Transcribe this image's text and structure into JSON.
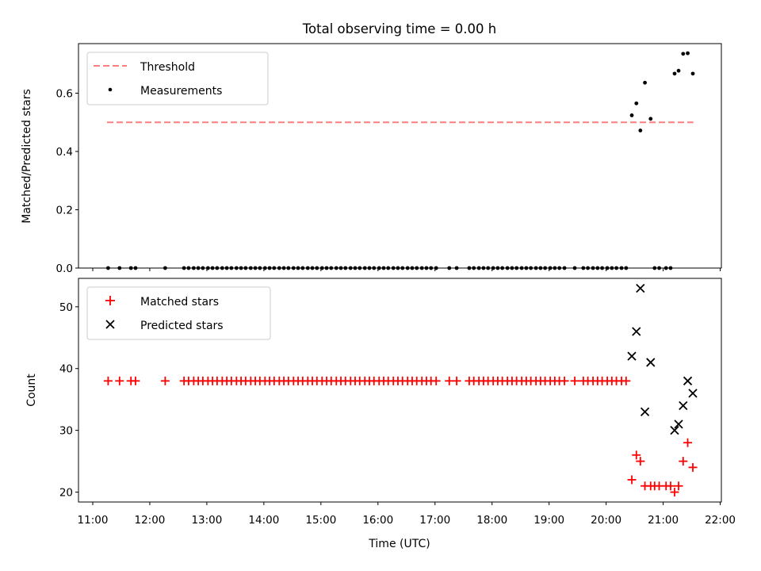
{
  "chart_data": [
    {
      "type": "scatter",
      "title": "Total observing time = 0.00 h",
      "xlabel": "",
      "ylabel": "Matched/Predicted stars",
      "xlim": [
        10.75,
        22.02
      ],
      "ylim": [
        0.0,
        0.77
      ],
      "yticks": [
        0.0,
        0.2,
        0.4,
        0.6
      ],
      "ytick_labels": [
        "0.0",
        "0.2",
        "0.4",
        "0.6"
      ],
      "legend_position": "upper-left",
      "threshold": {
        "name": "Threshold",
        "value": 0.5,
        "x_range": [
          11.25,
          21.53
        ],
        "style": "dashed",
        "color": "#ff7f7f"
      },
      "series": [
        {
          "name": "Measurements",
          "marker": "dot",
          "color": "#000000",
          "points": [
            [
              11.27,
              0
            ],
            [
              11.47,
              0
            ],
            [
              11.67,
              0
            ],
            [
              11.75,
              0
            ],
            [
              12.27,
              0
            ],
            [
              12.6,
              0
            ],
            [
              12.68,
              0
            ],
            [
              12.77,
              0
            ],
            [
              12.85,
              0
            ],
            [
              12.93,
              0
            ],
            [
              13.02,
              0
            ],
            [
              13.1,
              0
            ],
            [
              13.18,
              0
            ],
            [
              13.27,
              0
            ],
            [
              13.35,
              0
            ],
            [
              13.43,
              0
            ],
            [
              13.52,
              0
            ],
            [
              13.6,
              0
            ],
            [
              13.68,
              0
            ],
            [
              13.77,
              0
            ],
            [
              13.85,
              0
            ],
            [
              13.93,
              0
            ],
            [
              14.02,
              0
            ],
            [
              14.1,
              0
            ],
            [
              14.18,
              0
            ],
            [
              14.27,
              0
            ],
            [
              14.35,
              0
            ],
            [
              14.43,
              0
            ],
            [
              14.52,
              0
            ],
            [
              14.6,
              0
            ],
            [
              14.68,
              0
            ],
            [
              14.77,
              0
            ],
            [
              14.85,
              0
            ],
            [
              14.93,
              0
            ],
            [
              15.02,
              0
            ],
            [
              15.1,
              0
            ],
            [
              15.18,
              0
            ],
            [
              15.27,
              0
            ],
            [
              15.35,
              0
            ],
            [
              15.43,
              0
            ],
            [
              15.52,
              0
            ],
            [
              15.6,
              0
            ],
            [
              15.68,
              0
            ],
            [
              15.77,
              0
            ],
            [
              15.85,
              0
            ],
            [
              15.93,
              0
            ],
            [
              16.02,
              0
            ],
            [
              16.1,
              0
            ],
            [
              16.18,
              0
            ],
            [
              16.27,
              0
            ],
            [
              16.35,
              0
            ],
            [
              16.43,
              0
            ],
            [
              16.52,
              0
            ],
            [
              16.6,
              0
            ],
            [
              16.68,
              0
            ],
            [
              16.77,
              0
            ],
            [
              16.85,
              0
            ],
            [
              16.93,
              0
            ],
            [
              17.02,
              0
            ],
            [
              17.25,
              0
            ],
            [
              17.38,
              0
            ],
            [
              17.6,
              0
            ],
            [
              17.68,
              0
            ],
            [
              17.77,
              0
            ],
            [
              17.85,
              0
            ],
            [
              17.93,
              0
            ],
            [
              18.02,
              0
            ],
            [
              18.1,
              0
            ],
            [
              18.18,
              0
            ],
            [
              18.27,
              0
            ],
            [
              18.35,
              0
            ],
            [
              18.43,
              0
            ],
            [
              18.52,
              0
            ],
            [
              18.6,
              0
            ],
            [
              18.68,
              0
            ],
            [
              18.77,
              0
            ],
            [
              18.85,
              0
            ],
            [
              18.93,
              0
            ],
            [
              19.02,
              0
            ],
            [
              19.1,
              0
            ],
            [
              19.18,
              0
            ],
            [
              19.27,
              0
            ],
            [
              19.45,
              0
            ],
            [
              19.6,
              0
            ],
            [
              19.68,
              0
            ],
            [
              19.77,
              0
            ],
            [
              19.85,
              0
            ],
            [
              19.93,
              0
            ],
            [
              20.02,
              0
            ],
            [
              20.1,
              0
            ],
            [
              20.18,
              0
            ],
            [
              20.27,
              0
            ],
            [
              20.35,
              0
            ],
            [
              20.45,
              0.524
            ],
            [
              20.53,
              0.565
            ],
            [
              20.6,
              0.472
            ],
            [
              20.68,
              0.636
            ],
            [
              20.78,
              0.512
            ],
            [
              20.85,
              0
            ],
            [
              20.93,
              0
            ],
            [
              21.05,
              0
            ],
            [
              21.13,
              0
            ],
            [
              21.2,
              0.667
            ],
            [
              21.27,
              0.677
            ],
            [
              21.35,
              0.735
            ],
            [
              21.43,
              0.737
            ],
            [
              21.52,
              0.667
            ]
          ]
        }
      ]
    },
    {
      "type": "scatter",
      "title": "",
      "xlabel": "Time (UTC)",
      "ylabel": "Count",
      "xlim": [
        10.75,
        22.02
      ],
      "ylim": [
        18.4,
        54.6
      ],
      "yticks": [
        20,
        30,
        40,
        50
      ],
      "ytick_labels": [
        "20",
        "30",
        "40",
        "50"
      ],
      "xticks": [
        11,
        12,
        13,
        14,
        15,
        16,
        17,
        18,
        19,
        20,
        21,
        22
      ],
      "xtick_labels": [
        "11:00",
        "12:00",
        "13:00",
        "14:00",
        "15:00",
        "16:00",
        "17:00",
        "18:00",
        "19:00",
        "20:00",
        "21:00",
        "22:00"
      ],
      "legend_position": "upper-left",
      "series": [
        {
          "name": "Matched stars",
          "marker": "plus",
          "color": "#ff0000",
          "points": [
            [
              11.27,
              38
            ],
            [
              11.47,
              38
            ],
            [
              11.67,
              38
            ],
            [
              11.75,
              38
            ],
            [
              12.27,
              38
            ],
            [
              12.6,
              38
            ],
            [
              12.68,
              38
            ],
            [
              12.77,
              38
            ],
            [
              12.85,
              38
            ],
            [
              12.93,
              38
            ],
            [
              13.02,
              38
            ],
            [
              13.1,
              38
            ],
            [
              13.18,
              38
            ],
            [
              13.27,
              38
            ],
            [
              13.35,
              38
            ],
            [
              13.43,
              38
            ],
            [
              13.52,
              38
            ],
            [
              13.6,
              38
            ],
            [
              13.68,
              38
            ],
            [
              13.77,
              38
            ],
            [
              13.85,
              38
            ],
            [
              13.93,
              38
            ],
            [
              14.02,
              38
            ],
            [
              14.1,
              38
            ],
            [
              14.18,
              38
            ],
            [
              14.27,
              38
            ],
            [
              14.35,
              38
            ],
            [
              14.43,
              38
            ],
            [
              14.52,
              38
            ],
            [
              14.6,
              38
            ],
            [
              14.68,
              38
            ],
            [
              14.77,
              38
            ],
            [
              14.85,
              38
            ],
            [
              14.93,
              38
            ],
            [
              15.02,
              38
            ],
            [
              15.1,
              38
            ],
            [
              15.18,
              38
            ],
            [
              15.27,
              38
            ],
            [
              15.35,
              38
            ],
            [
              15.43,
              38
            ],
            [
              15.52,
              38
            ],
            [
              15.6,
              38
            ],
            [
              15.68,
              38
            ],
            [
              15.77,
              38
            ],
            [
              15.85,
              38
            ],
            [
              15.93,
              38
            ],
            [
              16.02,
              38
            ],
            [
              16.1,
              38
            ],
            [
              16.18,
              38
            ],
            [
              16.27,
              38
            ],
            [
              16.35,
              38
            ],
            [
              16.43,
              38
            ],
            [
              16.52,
              38
            ],
            [
              16.6,
              38
            ],
            [
              16.68,
              38
            ],
            [
              16.77,
              38
            ],
            [
              16.85,
              38
            ],
            [
              16.93,
              38
            ],
            [
              17.02,
              38
            ],
            [
              17.25,
              38
            ],
            [
              17.38,
              38
            ],
            [
              17.6,
              38
            ],
            [
              17.68,
              38
            ],
            [
              17.77,
              38
            ],
            [
              17.85,
              38
            ],
            [
              17.93,
              38
            ],
            [
              18.02,
              38
            ],
            [
              18.1,
              38
            ],
            [
              18.18,
              38
            ],
            [
              18.27,
              38
            ],
            [
              18.35,
              38
            ],
            [
              18.43,
              38
            ],
            [
              18.52,
              38
            ],
            [
              18.6,
              38
            ],
            [
              18.68,
              38
            ],
            [
              18.77,
              38
            ],
            [
              18.85,
              38
            ],
            [
              18.93,
              38
            ],
            [
              19.02,
              38
            ],
            [
              19.1,
              38
            ],
            [
              19.18,
              38
            ],
            [
              19.27,
              38
            ],
            [
              19.45,
              38
            ],
            [
              19.6,
              38
            ],
            [
              19.68,
              38
            ],
            [
              19.77,
              38
            ],
            [
              19.85,
              38
            ],
            [
              19.93,
              38
            ],
            [
              20.02,
              38
            ],
            [
              20.1,
              38
            ],
            [
              20.18,
              38
            ],
            [
              20.27,
              38
            ],
            [
              20.35,
              38
            ],
            [
              20.45,
              22
            ],
            [
              20.53,
              26
            ],
            [
              20.6,
              25
            ],
            [
              20.68,
              21
            ],
            [
              20.78,
              21
            ],
            [
              20.85,
              21
            ],
            [
              20.93,
              21
            ],
            [
              21.05,
              21
            ],
            [
              21.13,
              21
            ],
            [
              21.2,
              20
            ],
            [
              21.27,
              21
            ],
            [
              21.35,
              25
            ],
            [
              21.43,
              28
            ],
            [
              21.52,
              24
            ]
          ]
        },
        {
          "name": "Predicted stars",
          "marker": "x",
          "color": "#000000",
          "points": [
            [
              20.45,
              42
            ],
            [
              20.53,
              46
            ],
            [
              20.6,
              53
            ],
            [
              20.68,
              33
            ],
            [
              20.78,
              41
            ],
            [
              21.2,
              30
            ],
            [
              21.27,
              31
            ],
            [
              21.35,
              34
            ],
            [
              21.43,
              38
            ],
            [
              21.52,
              36
            ]
          ]
        }
      ]
    }
  ]
}
